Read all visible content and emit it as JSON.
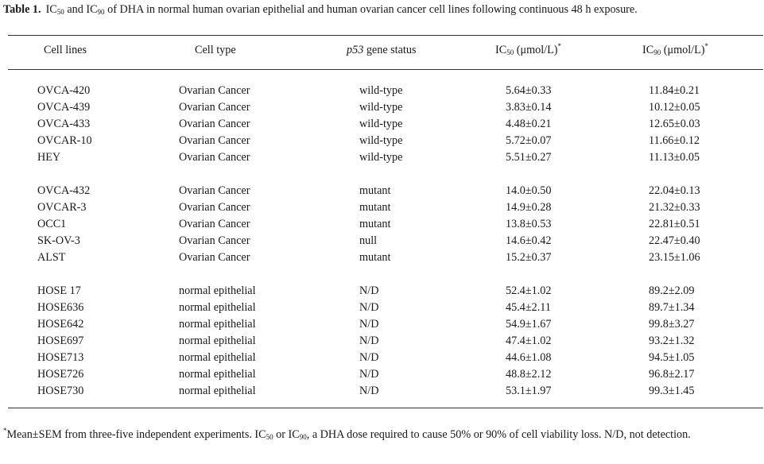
{
  "table": {
    "label": "Table 1.",
    "caption_parts": [
      "IC",
      "50",
      " and IC",
      "90",
      " of DHA in normal human ovarian epithelial and human ovarian cancer cell lines following continuous 48 h exposure."
    ],
    "headers": {
      "cell_lines": "Cell lines",
      "cell_type": "Cell type",
      "p53_italic": "p53",
      "p53_rest": " gene status",
      "ic50_main": "IC",
      "ic50_sub": "50",
      "ic50_unit": " (μmol/L)",
      "ic50_star": "*",
      "ic90_main": "IC",
      "ic90_sub": "90",
      "ic90_unit": " (μmol/L)",
      "ic90_star": "*"
    },
    "groups": [
      [
        [
          "OVCA-420",
          "Ovarian Cancer",
          "wild-type",
          "5.64±0.33",
          "11.84±0.21"
        ],
        [
          "OVCA-439",
          "Ovarian Cancer",
          "wild-type",
          "3.83±0.14",
          "10.12±0.05"
        ],
        [
          "OVCA-433",
          "Ovarian Cancer",
          "wild-type",
          "4.48±0.21",
          "12.65±0.03"
        ],
        [
          "OVCAR-10",
          "Ovarian Cancer",
          "wild-type",
          "5.72±0.07",
          "11.66±0.12"
        ],
        [
          "HEY",
          "Ovarian Cancer",
          "wild-type",
          "5.51±0.27",
          "11.13±0.05"
        ]
      ],
      [
        [
          "OVCA-432",
          "Ovarian Cancer",
          "mutant",
          "14.0±0.50",
          "22.04±0.13"
        ],
        [
          "OVCAR-3",
          "Ovarian Cancer",
          "mutant",
          "14.9±0.28",
          "21.32±0.33"
        ],
        [
          "OCC1",
          "Ovarian Cancer",
          "mutant",
          "13.8±0.53",
          "22.81±0.51"
        ],
        [
          "SK-OV-3",
          "Ovarian Cancer",
          "null",
          "14.6±0.42",
          "22.47±0.40"
        ],
        [
          "ALST",
          "Ovarian Cancer",
          "mutant",
          "15.2±0.37",
          "23.15±1.06"
        ]
      ],
      [
        [
          "HOSE 17",
          "normal epithelial",
          "N/D",
          "52.4±1.02",
          "89.2±2.09"
        ],
        [
          "HOSE636",
          "normal epithelial",
          "N/D",
          "45.4±2.11",
          "89.7±1.34"
        ],
        [
          "HOSE642",
          "normal epithelial",
          "N/D",
          "54.9±1.67",
          "99.8±3.27"
        ],
        [
          "HOSE697",
          "normal epithelial",
          "N/D",
          "47.4±1.02",
          "93.2±1.32"
        ],
        [
          "HOSE713",
          "normal epithelial",
          "N/D",
          "44.6±1.08",
          "94.5±1.05"
        ],
        [
          "HOSE726",
          "normal epithelial",
          "N/D",
          "48.8±2.12",
          "96.8±2.17"
        ],
        [
          "HOSE730",
          "normal epithelial",
          "N/D",
          "53.1±1.97",
          "99.3±1.45"
        ]
      ]
    ],
    "footnote_parts": [
      "*",
      "Mean±SEM from three-five independent experiments.  IC",
      "50",
      " or IC",
      "90",
      ", a DHA dose required to cause 50% or 90% of cell viability loss.  N/D, not detection."
    ]
  }
}
